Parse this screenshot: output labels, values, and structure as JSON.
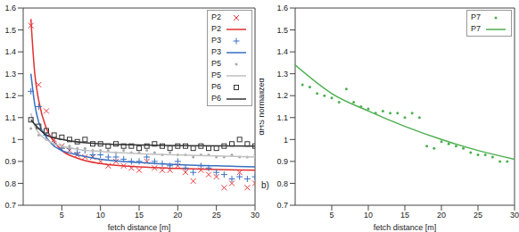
{
  "chart_data": [
    {
      "type": "scatter",
      "xlabel": "fetch distance [m]",
      "xlim": [
        0,
        30
      ],
      "xticks": [
        5,
        10,
        15,
        20,
        25,
        30
      ],
      "ylim": [
        0.7,
        1.6
      ],
      "yticks": [
        0.7,
        0.8,
        0.9,
        1,
        1.1,
        1.2,
        1.3,
        1.4,
        1.5,
        1.6
      ],
      "legend": "upper right",
      "series": [
        {
          "name": "P2",
          "type": "scatter",
          "marker": "x",
          "color": "#e8383d",
          "x": [
            1,
            2,
            3,
            4,
            5,
            6,
            7,
            8,
            9,
            10,
            11,
            12,
            13,
            14,
            15,
            16,
            17,
            18,
            19,
            20,
            21,
            22,
            23,
            24,
            25,
            26,
            27,
            28,
            29,
            30
          ],
          "values": [
            1.52,
            1.25,
            1.13,
            1.0,
            0.97,
            0.95,
            0.93,
            0.92,
            0.92,
            0.9,
            0.88,
            0.9,
            0.88,
            0.87,
            0.86,
            0.9,
            0.87,
            0.86,
            0.86,
            0.88,
            0.85,
            0.81,
            0.86,
            0.84,
            0.83,
            0.78,
            0.8,
            0.85,
            0.78,
            0.8
          ]
        },
        {
          "name": "P2",
          "type": "line",
          "line_style": "solid",
          "color": "#e03030",
          "x": [
            1,
            1.5,
            2,
            3,
            4,
            5,
            7,
            10,
            15,
            20,
            25,
            30
          ],
          "values": [
            1.55,
            1.3,
            1.18,
            1.05,
            0.99,
            0.95,
            0.915,
            0.89,
            0.875,
            0.868,
            0.863,
            0.86
          ]
        },
        {
          "name": "P3",
          "type": "scatter",
          "marker": "+",
          "color": "#3a6fc0",
          "x": [
            1,
            2,
            3,
            4,
            5,
            6,
            7,
            8,
            9,
            10,
            11,
            12,
            13,
            14,
            15,
            16,
            17,
            18,
            19,
            20,
            21,
            22,
            23,
            24,
            25,
            26,
            27,
            28,
            29,
            30
          ],
          "values": [
            1.22,
            1.15,
            1.02,
            0.98,
            0.96,
            0.96,
            0.94,
            0.95,
            0.93,
            0.93,
            0.92,
            0.92,
            0.91,
            0.9,
            0.9,
            0.92,
            0.9,
            0.89,
            0.88,
            0.9,
            0.87,
            0.85,
            0.88,
            0.87,
            0.85,
            0.84,
            0.82,
            0.83,
            0.82,
            0.83
          ]
        },
        {
          "name": "P3",
          "type": "line",
          "line_style": "solid",
          "color": "#3a6fc0",
          "x": [
            1,
            1.5,
            2,
            3,
            4,
            5,
            7,
            10,
            15,
            20,
            25,
            30
          ],
          "values": [
            1.3,
            1.16,
            1.08,
            1.01,
            0.97,
            0.95,
            0.93,
            0.91,
            0.895,
            0.885,
            0.88,
            0.875
          ]
        },
        {
          "name": "P5",
          "type": "scatter",
          "marker": "dot",
          "color": "#a8a8a8",
          "x": [
            1,
            2,
            3,
            4,
            5,
            6,
            7,
            8,
            9,
            10,
            11,
            12,
            13,
            14,
            15,
            16,
            17,
            18,
            19,
            20,
            21,
            22,
            23,
            24,
            25,
            26,
            27,
            28,
            29,
            30
          ],
          "values": [
            1.05,
            1.02,
            1.0,
            0.98,
            0.97,
            0.97,
            0.96,
            0.96,
            0.95,
            0.95,
            0.95,
            0.94,
            0.95,
            0.94,
            0.94,
            0.95,
            0.94,
            0.93,
            0.94,
            0.93,
            0.93,
            0.92,
            0.93,
            0.93,
            0.92,
            0.92,
            0.93,
            0.92,
            0.92,
            0.93
          ]
        },
        {
          "name": "P5",
          "type": "line",
          "line_style": "solid",
          "color": "#c0c0c0",
          "x": [
            1,
            1.5,
            2,
            3,
            4,
            5,
            7,
            10,
            15,
            20,
            25,
            30
          ],
          "values": [
            1.12,
            1.06,
            1.03,
            1.0,
            0.98,
            0.97,
            0.955,
            0.945,
            0.935,
            0.93,
            0.925,
            0.92
          ]
        },
        {
          "name": "P6",
          "type": "scatter",
          "marker": "square",
          "color": "#333333",
          "x": [
            1,
            2,
            3,
            4,
            5,
            6,
            7,
            8,
            9,
            10,
            11,
            12,
            13,
            14,
            15,
            16,
            17,
            18,
            19,
            20,
            21,
            22,
            23,
            24,
            25,
            26,
            27,
            28,
            29,
            30
          ],
          "values": [
            1.09,
            1.06,
            1.04,
            1.02,
            1.01,
            1.0,
            0.99,
            1.0,
            0.98,
            0.98,
            0.97,
            0.98,
            0.97,
            0.97,
            0.96,
            0.97,
            0.98,
            0.97,
            0.96,
            0.97,
            0.97,
            0.96,
            0.97,
            0.96,
            0.96,
            0.97,
            0.98,
            1.0,
            0.98,
            0.97
          ]
        },
        {
          "name": "P6",
          "type": "line",
          "line_style": "solid",
          "color": "#333333",
          "x": [
            1,
            2,
            3,
            5,
            10,
            15,
            20,
            30
          ],
          "values": [
            1.09,
            1.05,
            1.02,
            1.0,
            0.98,
            0.975,
            0.972,
            0.97
          ]
        }
      ]
    },
    {
      "type": "scatter",
      "xlabel": "fetch distance [m]",
      "ylabel": "dHS normalized",
      "annotation": "b)",
      "xlim": [
        0,
        30
      ],
      "xticks": [
        5,
        10,
        15,
        20,
        25,
        30
      ],
      "ylim": [
        0.7,
        1.6
      ],
      "yticks": [
        0.7,
        0.8,
        0.9,
        1,
        1.1,
        1.2,
        1.3,
        1.4,
        1.5,
        1.6
      ],
      "legend": "upper right",
      "series": [
        {
          "name": "P7",
          "type": "scatter",
          "marker": "dot",
          "color": "#4caf50",
          "x": [
            1,
            2,
            3,
            4,
            5,
            6,
            7,
            8,
            9,
            10,
            11,
            12,
            13,
            14,
            15,
            16,
            17,
            18,
            19,
            20,
            21,
            22,
            23,
            24,
            25,
            26,
            27,
            28,
            29
          ],
          "values": [
            1.25,
            1.24,
            1.21,
            1.2,
            1.19,
            1.17,
            1.23,
            1.17,
            1.15,
            1.14,
            1.12,
            1.13,
            1.12,
            1.12,
            1.1,
            1.12,
            1.1,
            0.97,
            0.96,
            0.99,
            0.98,
            0.97,
            0.96,
            0.94,
            0.93,
            0.93,
            0.92,
            0.9,
            0.9
          ]
        },
        {
          "name": "P7",
          "type": "line",
          "line_style": "solid",
          "color": "#4caf50",
          "x": [
            0,
            5,
            10,
            15,
            20,
            25,
            30
          ],
          "values": [
            1.34,
            1.21,
            1.13,
            1.06,
            1.0,
            0.95,
            0.91
          ]
        }
      ]
    }
  ]
}
